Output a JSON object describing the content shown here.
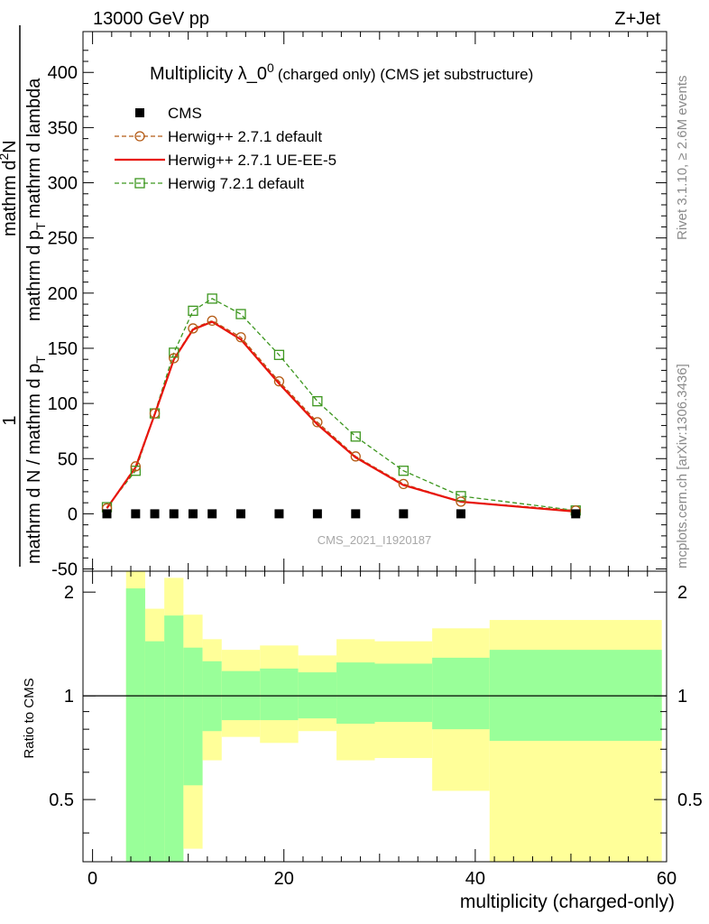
{
  "header": {
    "left": "13000 GeV pp",
    "right": "Z+Jet"
  },
  "side": {
    "rivet": "Rivet 3.1.10, ≥ 2.6M events",
    "mcplots": "mcplots.cern.ch [arXiv:1306.3436]"
  },
  "main_title": {
    "main": "Multiplicity λ_0",
    "sup": "0",
    "sub": "(charged only) (CMS jet substructure)"
  },
  "ylabel": {
    "num": "1",
    "den": "mathrm d N / mathrm d p",
    "den_sub": "T",
    "frac2_num": "mathrm d",
    "frac2_num_sup": "2",
    "frac2_num_tail": "N",
    "frac2_den": "mathrm d p",
    "frac2_den_sub": "T",
    "frac2_den_tail": "mathrm d lambda"
  },
  "watermark": "CMS_2021_I1920187",
  "ratio_ylabel": "Ratio to CMS",
  "xlabel": "multiplicity (charged-only)",
  "legend": [
    {
      "label": "CMS",
      "color": "#000000",
      "style": "data"
    },
    {
      "label": "Herwig++ 2.7.1 default",
      "color": "#b45a14",
      "style": "circle"
    },
    {
      "label": "Herwig++ 2.7.1 UE-EE-5",
      "color": "#e8140c",
      "style": "line"
    },
    {
      "label": "Herwig 7.2.1 default",
      "color": "#3c961e",
      "style": "square"
    }
  ],
  "chart_data": {
    "type": "line",
    "x": [
      1.5,
      4.5,
      6.5,
      8.5,
      10.5,
      12.5,
      15.5,
      19.5,
      23.5,
      27.5,
      32.5,
      38.5,
      50.5
    ],
    "xlim": [
      -1,
      60
    ],
    "ylim": [
      -52,
      437
    ],
    "xticks": [
      0,
      20,
      40,
      60
    ],
    "yticks": [
      -50,
      0,
      50,
      100,
      150,
      200,
      250,
      300,
      350,
      400
    ],
    "series": [
      {
        "name": "CMS",
        "values": [
          0,
          0,
          0,
          0,
          0,
          0,
          0,
          0,
          0,
          0,
          0,
          0,
          0
        ]
      },
      {
        "name": "Herwig++ 2.7.1 default",
        "values": [
          5,
          43,
          91,
          141,
          168,
          175,
          160,
          120,
          83,
          52,
          27,
          11,
          3
        ]
      },
      {
        "name": "Herwig++ 2.7.1 UE-EE-5",
        "values": [
          5,
          42,
          90,
          140,
          167,
          174,
          158,
          118,
          81,
          51,
          26,
          11,
          2
        ]
      },
      {
        "name": "Herwig 7.2.1 default",
        "values": [
          6,
          39,
          91,
          146,
          184,
          195,
          181,
          144,
          102,
          70,
          39,
          16,
          3
        ]
      }
    ],
    "ratio": {
      "ylabel": "Ratio to CMS",
      "ylim": [
        0.33,
        2.3
      ],
      "yticks": [
        0.5,
        1,
        2
      ],
      "reference": 1,
      "bins": [
        {
          "lo": -1,
          "hi": 3.5,
          "g_lo": 1,
          "g_hi": 1,
          "y_lo": 1,
          "y_hi": 1
        },
        {
          "lo": 3.5,
          "hi": 5.5,
          "g_lo": 0.33,
          "g_hi": 2.05,
          "y_lo": 0.33,
          "y_hi": 2.3
        },
        {
          "lo": 5.5,
          "hi": 7.5,
          "g_lo": 0.33,
          "g_hi": 1.44,
          "y_lo": 0.67,
          "y_hi": 1.79
        },
        {
          "lo": 7.5,
          "hi": 9.5,
          "g_lo": 0.33,
          "g_hi": 1.71,
          "y_lo": 0.33,
          "y_hi": 2.2
        },
        {
          "lo": 9.5,
          "hi": 11.5,
          "g_lo": 0.55,
          "g_hi": 1.38,
          "y_lo": 0.36,
          "y_hi": 1.72
        },
        {
          "lo": 11.5,
          "hi": 13.5,
          "g_lo": 0.79,
          "g_hi": 1.26,
          "y_lo": 0.65,
          "y_hi": 1.46
        },
        {
          "lo": 13.5,
          "hi": 17.5,
          "g_lo": 0.85,
          "g_hi": 1.18,
          "y_lo": 0.76,
          "y_hi": 1.36
        },
        {
          "lo": 17.5,
          "hi": 21.5,
          "g_lo": 0.85,
          "g_hi": 1.2,
          "y_lo": 0.73,
          "y_hi": 1.4
        },
        {
          "lo": 21.5,
          "hi": 25.5,
          "g_lo": 0.86,
          "g_hi": 1.17,
          "y_lo": 0.79,
          "y_hi": 1.31
        },
        {
          "lo": 25.5,
          "hi": 29.5,
          "g_lo": 0.83,
          "g_hi": 1.25,
          "y_lo": 0.65,
          "y_hi": 1.46
        },
        {
          "lo": 29.5,
          "hi": 35.5,
          "g_lo": 0.84,
          "g_hi": 1.24,
          "y_lo": 0.66,
          "y_hi": 1.44
        },
        {
          "lo": 35.5,
          "hi": 41.5,
          "g_lo": 0.8,
          "g_hi": 1.29,
          "y_lo": 0.53,
          "y_hi": 1.57
        },
        {
          "lo": 41.5,
          "hi": 59.5,
          "g_lo": 0.74,
          "g_hi": 1.36,
          "y_lo": 0.33,
          "y_hi": 1.66
        }
      ]
    }
  }
}
